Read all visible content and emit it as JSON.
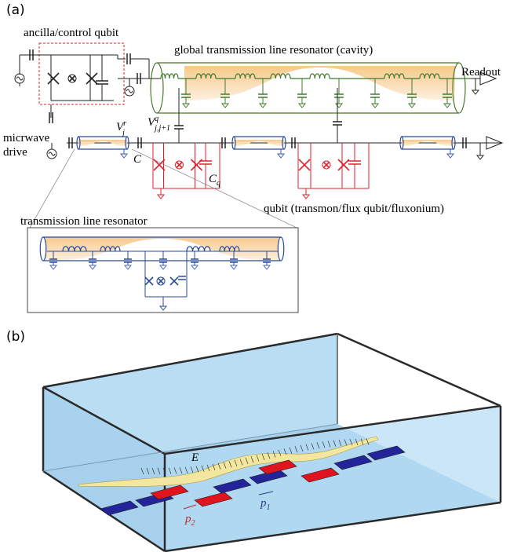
{
  "panel_a": {
    "label": "(a)",
    "ancilla_label": "ancilla/control qubit",
    "cavity_label": "global transmission line resonator (cavity)",
    "readout_label": "Readout",
    "drive_label": [
      "micrwave",
      "drive"
    ],
    "resonator_voltage": {
      "base": "V",
      "sup": "r",
      "sub": "j"
    },
    "qubit_voltage": {
      "base": "V",
      "sup": "q",
      "sub": "j,j+1"
    },
    "coupling_capacitor": "C",
    "qubit_capacitor": {
      "base": "C",
      "sub": "q"
    },
    "qubit_label": "qubit (transmon/flux qubit/fluxonium)",
    "resonator_label": "transmission line resonator"
  },
  "panel_b": {
    "label": "(b)",
    "field_label": "E",
    "dipole_labels": [
      {
        "base": "p",
        "sub": "2"
      },
      {
        "base": "p",
        "sub": "1"
      }
    ]
  }
}
